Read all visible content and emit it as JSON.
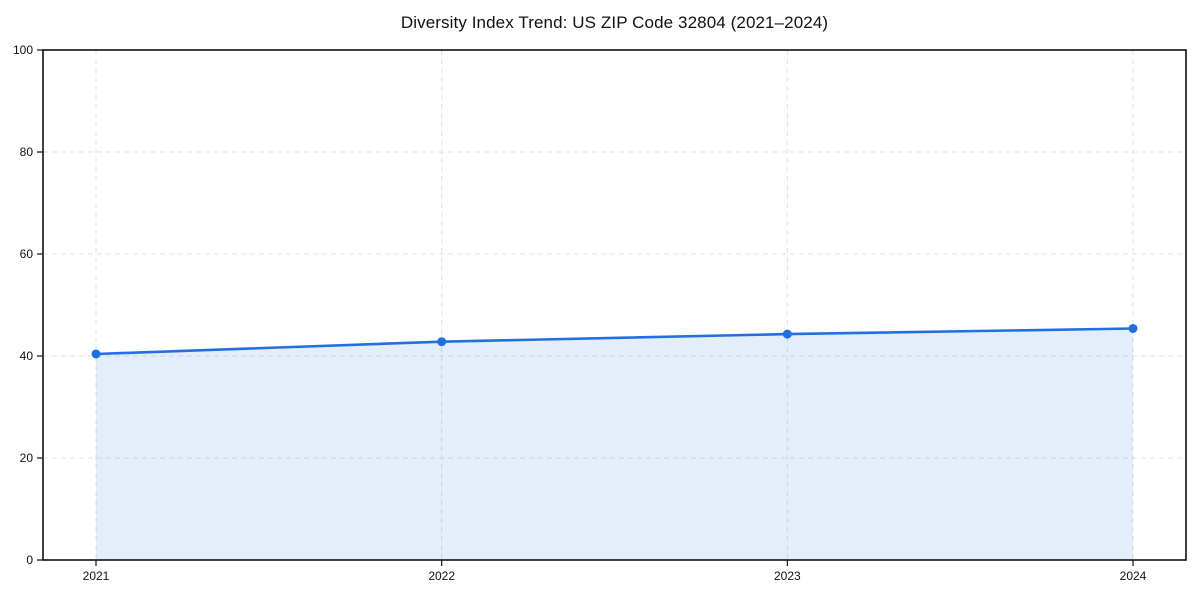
{
  "chart_data": {
    "type": "line",
    "title": "Diversity Index Trend: US ZIP Code 32804 (2021–2024)",
    "categories": [
      "2021",
      "2022",
      "2023",
      "2024"
    ],
    "series": [
      {
        "name": "Diversity Index",
        "values": [
          40.4,
          42.8,
          44.3,
          45.4
        ]
      }
    ],
    "xlabel": "",
    "ylabel": "",
    "ylim": [
      0,
      100
    ],
    "yticks": [
      0,
      20,
      40,
      60,
      80,
      100
    ],
    "grid": "dashed-both-axes",
    "legend_position": "none",
    "area_fill_to_zero": true,
    "marker": "circle",
    "colors": {
      "line": "#2270e0",
      "marker": "#2270e0",
      "area_fill": "rgba(34, 112, 224, 0.12)",
      "grid": "#e0e0e0",
      "axis_frame": "#111111",
      "tick_text": "#111111",
      "background": "#ffffff"
    }
  }
}
